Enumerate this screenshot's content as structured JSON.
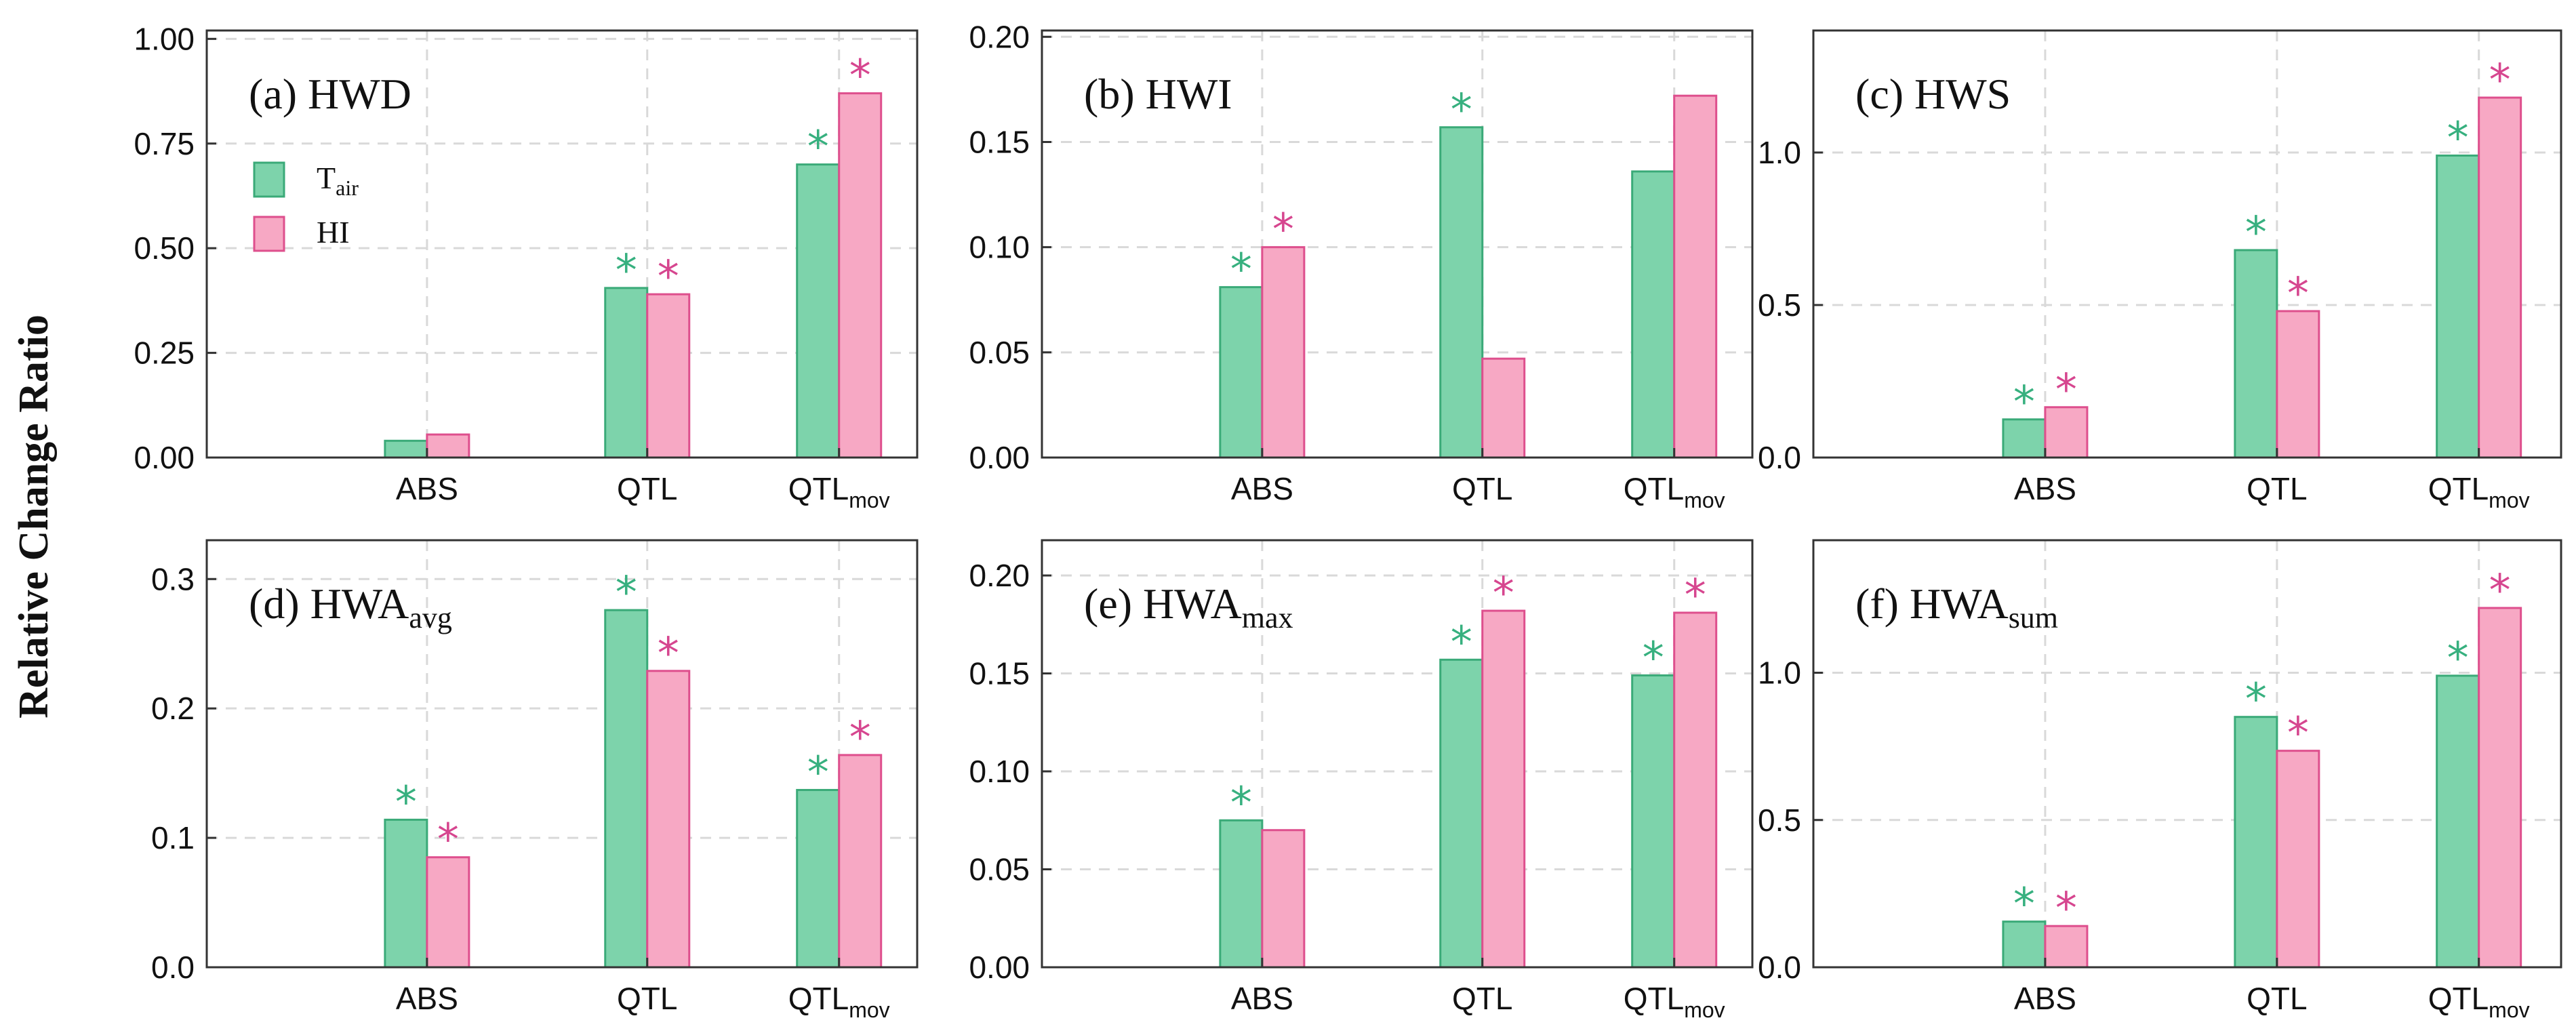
{
  "chart_data": {
    "ylabel": "Relative Change Ratio",
    "legend": [
      {
        "name": "T",
        "sub": "air",
        "color": "#7dd3ab",
        "edge": "#3aaa78"
      },
      {
        "name": "HI",
        "sub": "",
        "color": "#f7a8c4",
        "edge": "#de4f8d"
      }
    ],
    "significance_colors": {
      "Tair": "#37b07f",
      "HI": "#d6468f"
    },
    "panels": [
      {
        "type": "bar",
        "id": "a",
        "title": "(a) HWD",
        "title_main": "(a) HWD",
        "title_sub": "",
        "categories": [
          {
            "main": "ABS",
            "sub": ""
          },
          {
            "main": "QTL",
            "sub": ""
          },
          {
            "main": "QTL",
            "sub": "mov"
          }
        ],
        "ylim": [
          0,
          1.02
        ],
        "yticks": [
          "0.00",
          "0.25",
          "0.50",
          "0.75",
          "1.00"
        ],
        "series": [
          {
            "name": "Tair",
            "values": [
              0.04,
              0.405,
              0.7
            ],
            "significant": [
              false,
              true,
              true
            ]
          },
          {
            "name": "HI",
            "values": [
              0.055,
              0.39,
              0.87
            ],
            "significant": [
              false,
              true,
              true
            ]
          }
        ],
        "legend": true
      },
      {
        "type": "bar",
        "id": "b",
        "title": "(b) HWI",
        "title_main": "(b) HWI",
        "title_sub": "",
        "categories": [
          {
            "main": "ABS",
            "sub": ""
          },
          {
            "main": "QTL",
            "sub": ""
          },
          {
            "main": "QTL",
            "sub": "mov"
          }
        ],
        "ylim": [
          0,
          0.203
        ],
        "yticks": [
          "0.00",
          "0.05",
          "0.10",
          "0.15",
          "0.20"
        ],
        "series": [
          {
            "name": "Tair",
            "values": [
              0.081,
              0.157,
              0.136
            ],
            "significant": [
              true,
              true,
              false
            ]
          },
          {
            "name": "HI",
            "values": [
              0.1,
              0.047,
              0.172
            ],
            "significant": [
              true,
              false,
              false
            ]
          }
        ],
        "legend": false
      },
      {
        "type": "bar",
        "id": "c",
        "title": "(c) HWS",
        "title_main": "(c) HWS",
        "title_sub": "",
        "categories": [
          {
            "main": "ABS",
            "sub": ""
          },
          {
            "main": "QTL",
            "sub": ""
          },
          {
            "main": "QTL",
            "sub": "mov"
          }
        ],
        "ylim": [
          0,
          1.4
        ],
        "yticks": [
          "0.0",
          "0.5",
          "1.0"
        ],
        "series": [
          {
            "name": "Tair",
            "values": [
              0.125,
              0.68,
              0.99
            ],
            "significant": [
              true,
              true,
              true
            ]
          },
          {
            "name": "HI",
            "values": [
              0.165,
              0.48,
              1.18
            ],
            "significant": [
              true,
              true,
              true
            ]
          }
        ],
        "legend": false
      },
      {
        "type": "bar",
        "id": "d",
        "title": "(d) HWAavg",
        "title_main": "(d) HWA",
        "title_sub": "avg",
        "categories": [
          {
            "main": "ABS",
            "sub": ""
          },
          {
            "main": "QTL",
            "sub": ""
          },
          {
            "main": "QTL",
            "sub": "mov"
          }
        ],
        "ylim": [
          0,
          0.33
        ],
        "yticks": [
          "0.0",
          "0.1",
          "0.2",
          "0.3"
        ],
        "series": [
          {
            "name": "Tair",
            "values": [
              0.114,
              0.276,
              0.137
            ],
            "significant": [
              true,
              true,
              true
            ]
          },
          {
            "name": "HI",
            "values": [
              0.085,
              0.229,
              0.164
            ],
            "significant": [
              true,
              true,
              true
            ]
          }
        ],
        "legend": false
      },
      {
        "type": "bar",
        "id": "e",
        "title": "(e) HWAmax",
        "title_main": "(e) HWA",
        "title_sub": "max",
        "categories": [
          {
            "main": "ABS",
            "sub": ""
          },
          {
            "main": "QTL",
            "sub": ""
          },
          {
            "main": "QTL",
            "sub": "mov"
          }
        ],
        "ylim": [
          0,
          0.218
        ],
        "yticks": [
          "0.00",
          "0.05",
          "0.10",
          "0.15",
          "0.20"
        ],
        "series": [
          {
            "name": "Tair",
            "values": [
              0.075,
              0.157,
              0.149
            ],
            "significant": [
              true,
              true,
              true
            ]
          },
          {
            "name": "HI",
            "values": [
              0.07,
              0.182,
              0.181
            ],
            "significant": [
              false,
              true,
              true
            ]
          }
        ],
        "legend": false
      },
      {
        "type": "bar",
        "id": "f",
        "title": "(f) HWAsum",
        "title_main": "(f) HWA",
        "title_sub": "sum",
        "categories": [
          {
            "main": "ABS",
            "sub": ""
          },
          {
            "main": "QTL",
            "sub": ""
          },
          {
            "main": "QTL",
            "sub": "mov"
          }
        ],
        "ylim": [
          0,
          1.45
        ],
        "yticks": [
          "0.0",
          "0.5",
          "1.0"
        ],
        "series": [
          {
            "name": "Tair",
            "values": [
              0.155,
              0.85,
              0.99
            ],
            "significant": [
              true,
              true,
              true
            ]
          },
          {
            "name": "HI",
            "values": [
              0.14,
              0.735,
              1.22
            ],
            "significant": [
              true,
              true,
              true
            ]
          }
        ],
        "legend": false
      }
    ]
  }
}
